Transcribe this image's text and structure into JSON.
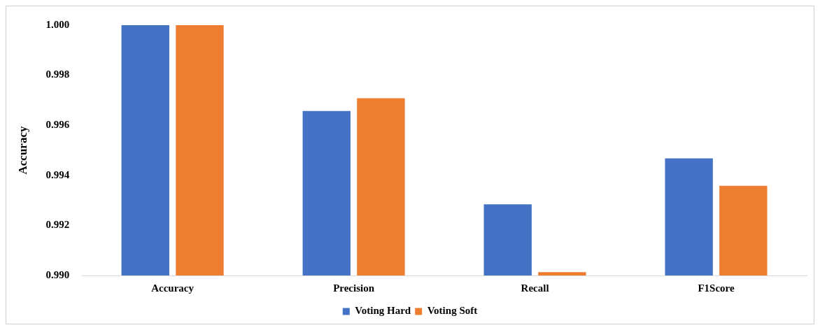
{
  "chart_data": {
    "type": "bar",
    "ylabel": "Accuracy",
    "categories": [
      "Accuracy",
      "Precision",
      "Recall",
      "F1Score"
    ],
    "series": [
      {
        "name": "Voting Hard",
        "color": "#4472c4",
        "values": [
          1.0,
          0.99657,
          0.99284,
          0.99468
        ]
      },
      {
        "name": "Voting Soft",
        "color": "#ed7d31",
        "values": [
          1.0,
          0.99708,
          0.99013,
          0.99358
        ]
      }
    ],
    "ylim": [
      0.99,
      1.0
    ],
    "yticks": [
      {
        "value": 0.99,
        "label": "0.990"
      },
      {
        "value": 0.992,
        "label": "0.992"
      },
      {
        "value": 0.994,
        "label": "0.994"
      },
      {
        "value": 0.996,
        "label": "0.996"
      },
      {
        "value": 0.998,
        "label": "0.998"
      },
      {
        "value": 1.0,
        "label": "1.000"
      }
    ],
    "grid": false,
    "legend": "bottom"
  }
}
